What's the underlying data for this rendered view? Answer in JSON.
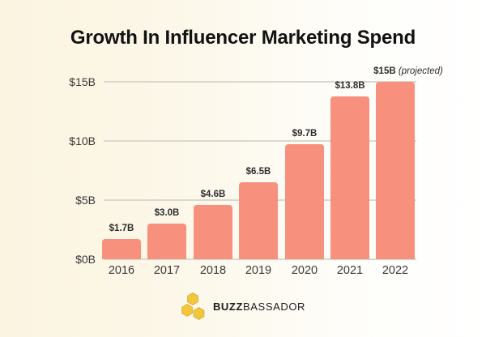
{
  "title": "Growth In Influencer Marketing Spend",
  "chart_data": {
    "type": "bar",
    "title": "Growth In Influencer Marketing Spend",
    "categories": [
      "2016",
      "2017",
      "2018",
      "2019",
      "2020",
      "2021",
      "2022"
    ],
    "values": [
      1.7,
      3.0,
      4.6,
      6.5,
      9.7,
      13.8,
      15
    ],
    "bar_labels": [
      "$1.7B",
      "$3.0B",
      "$4.6B",
      "$6.5B",
      "$9.7B",
      "$13.8B",
      "$15B"
    ],
    "last_bar_note": "(projected)",
    "xlabel": "",
    "ylabel": "",
    "ylim": [
      0,
      15
    ],
    "y_ticks": [
      {
        "value": 0,
        "label": "$0B"
      },
      {
        "value": 5,
        "label": "$5B"
      },
      {
        "value": 10,
        "label": "$10B"
      },
      {
        "value": 15,
        "label": "$15B"
      }
    ],
    "grid": "horizontal",
    "legend": "none",
    "bar_color": "#F7907C",
    "gridline_color": "#DBD9CF",
    "value_label_color": "#2D2D2D",
    "tick_label_color": "#3A3A3A"
  },
  "logo": {
    "icon": "honeycomb-icon",
    "text_bold": "BUZZ",
    "text_regular": "BASSADOR",
    "hex_fill": "#F2C73E",
    "hex_stroke": "#D9A426",
    "text_color": "#1C1C1C"
  },
  "page": {
    "background_left": "#FBF4E1",
    "background_right": "#FFFFFF"
  }
}
